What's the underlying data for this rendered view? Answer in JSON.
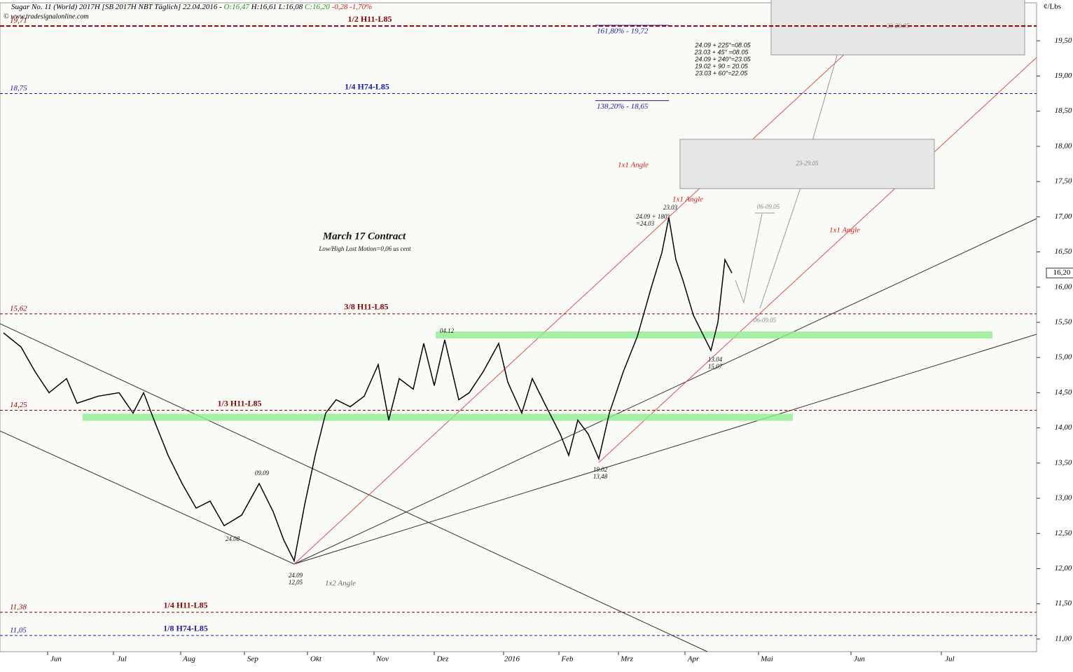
{
  "header": {
    "symbol": "Sugar No. 11 (World) 2017H [SB 2017H NBT  Täglich] 22.04.2016 -",
    "open": "O:16,47",
    "high": "H:16,61",
    "low": "L:16,08",
    "close": "C:16,20",
    "change": "-0,28 -1,70%",
    "copyright": "© www.tradesignalonline.com",
    "units": "¢/Lbs"
  },
  "chart_data": {
    "type": "line",
    "color": "#000000",
    "values": [
      15.35,
      15.15,
      14.8,
      14.5,
      14.7,
      14.35,
      14.45,
      14.5,
      14.21,
      14.5,
      14.11,
      13.61,
      13.21,
      12.86,
      12.96,
      12.61,
      12.76,
      13.21,
      12.81,
      12.41,
      12.11,
      12.91,
      13.61,
      14.21,
      14.4,
      14.3,
      14.45,
      14.9,
      14.11,
      14.7,
      14.55,
      15.2,
      14.6,
      15.25,
      14.4,
      14.5,
      14.8,
      15.2,
      14.65,
      14.21,
      14.7,
      14.3,
      13.91,
      13.61,
      14.11,
      13.91,
      13.56,
      14.21,
      14.8,
      15.3,
      16.0,
      16.49,
      16.99,
      16.39,
      16.1,
      15.6,
      15.3,
      15.1,
      15.5,
      16.39,
      16.2
    ],
    "x_labels": [
      "Jun",
      "Jul",
      "Aug",
      "Sep",
      "Okt",
      "Nov",
      "Dez",
      "2016",
      "Feb",
      "Mrz",
      "Apr",
      "Mai",
      "Jun",
      "Jul"
    ],
    "ylim": [
      10.82,
      20.04
    ],
    "yticks": [
      {
        "value": 11,
        "label": "11,00"
      },
      {
        "value": 11.5,
        "label": "11,50"
      },
      {
        "value": 12,
        "label": "12,00"
      },
      {
        "value": 12.5,
        "label": "12,50"
      },
      {
        "value": 13,
        "label": "13,00"
      },
      {
        "value": 13.5,
        "label": "13,50"
      },
      {
        "value": 14,
        "label": "14,00"
      },
      {
        "value": 14.5,
        "label": "14,50"
      },
      {
        "value": 15,
        "label": "15,00"
      },
      {
        "value": 15.5,
        "label": "15,50"
      },
      {
        "value": 16,
        "label": "16,00"
      },
      {
        "value": 16.5,
        "label": "16,50"
      },
      {
        "value": 17,
        "label": "17,00"
      },
      {
        "value": 17.5,
        "label": "17,50"
      },
      {
        "value": 18,
        "label": "18,00"
      },
      {
        "value": 18.5,
        "label": "18,50"
      },
      {
        "value": 19,
        "label": "19,00"
      },
      {
        "value": 19.5,
        "label": "19,50"
      }
    ],
    "last_price": {
      "value": 16.2,
      "label": "16,20"
    },
    "levels": [
      {
        "value": 19.71,
        "label": "19,71",
        "name": "1/2 H11-L85",
        "color": "#8b0000"
      },
      {
        "value": 18.75,
        "label": "18,75",
        "name": "1/4 H74-L85",
        "color": "#1a1aa6"
      },
      {
        "value": 15.62,
        "label": "15,62",
        "name": "3/8 H11-L85",
        "color": "#8b0000"
      },
      {
        "value": 14.25,
        "label": "14,25",
        "name": "1/3 H11-L85",
        "color": "#8b0000"
      },
      {
        "value": 11.38,
        "label": "11,38",
        "name": "1/4 H11-L85",
        "color": "#8b0000"
      },
      {
        "value": 11.05,
        "label": "11,05",
        "name": "1/8 H74-L85",
        "color": "#1a1aa6"
      }
    ],
    "fib_levels": [
      {
        "value": 19.72,
        "label": "161,80% - 19,72"
      },
      {
        "value": 18.65,
        "label": "138,20% - 18,65"
      }
    ],
    "zones": [
      {
        "ylim": [
          15.27,
          15.37
        ],
        "color": "#90ee90"
      },
      {
        "ylim": [
          14.1,
          14.2
        ],
        "color": "#90ee90"
      }
    ],
    "boxes": [
      {
        "ylim": [
          19.3,
          20.1
        ],
        "label": "23-29.05"
      },
      {
        "ylim": [
          17.4,
          18.1
        ],
        "label": "23-29.05"
      }
    ],
    "annotations": [
      "March 17 Contract",
      "Low/High Lost Motion=0,06 us cent",
      "1x1 Angle",
      "1x1 Angle",
      "1x1 Angle",
      "1x2 Angle",
      "24.09 + 180°",
      "=24.03",
      "23.03",
      "13.04",
      "15,07",
      "19.02",
      "13,48",
      "24.09",
      "12,05",
      "24.08",
      "09.09",
      "04.12",
      "06-09.05",
      "06-09.05",
      "24.09 + 225°=08.05",
      "23.03 + 45° =08.05",
      "24.09 + 240°=23.05",
      "19.02 + 90 = 20.05",
      "23.03 + 60°=22.05"
    ]
  }
}
